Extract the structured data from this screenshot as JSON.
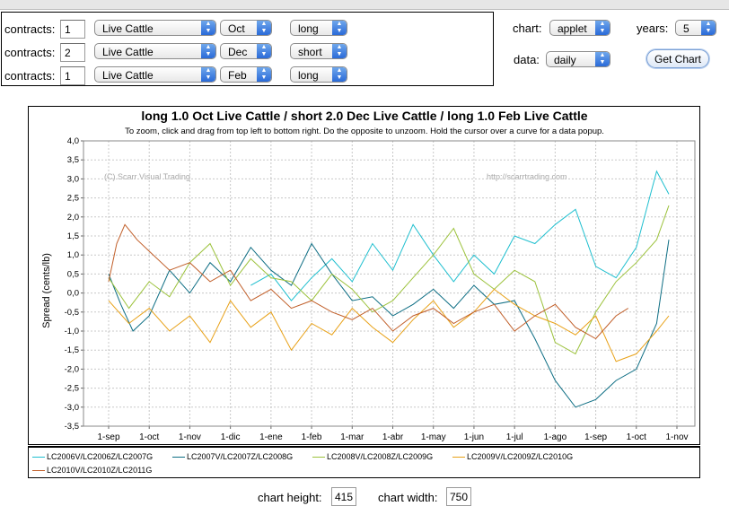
{
  "controls": {
    "rows": [
      {
        "label": "contracts:",
        "qty": "1",
        "commodity": "Live Cattle",
        "month": "Oct",
        "side": "long"
      },
      {
        "label": "contracts:",
        "qty": "2",
        "commodity": "Live Cattle",
        "month": "Dec",
        "side": "short"
      },
      {
        "label": "contracts:",
        "qty": "1",
        "commodity": "Live Cattle",
        "month": "Feb",
        "side": "long"
      }
    ],
    "chart_label": "chart:",
    "chart_value": "applet",
    "years_label": "years:",
    "years_value": "5",
    "data_label": "data:",
    "data_value": "daily",
    "button_label": "Get Chart",
    "arrow_up": "▲",
    "arrow_down": "▼"
  },
  "bottom": {
    "height_label": "chart height:",
    "height_value": "415",
    "width_label": "chart width:",
    "width_value": "750"
  },
  "colors": {
    "grid": "#c8c8c8",
    "series": [
      "#1fbfcf",
      "#0e6e84",
      "#9cc23c",
      "#e8a117",
      "#c15f2a"
    ]
  },
  "chart_data": {
    "type": "line",
    "title": "long 1.0 Oct Live Cattle / short 2.0 Dec Live Cattle / long 1.0 Feb Live Cattle",
    "subtitle": "To zoom, click and drag from top left to bottom right. Do the opposite to unzoom. Hold the cursor over a curve for a data popup.",
    "ylabel": "Spread (cents/lb)",
    "xlabel": "",
    "ylim": [
      -3.5,
      4.0
    ],
    "y_ticks": [
      "4,0",
      "3,5",
      "3,0",
      "2,5",
      "2,0",
      "1,5",
      "1,0",
      "0,5",
      "0,0",
      "-0,5",
      "-1,0",
      "-1,5",
      "-2,0",
      "-2,5",
      "-3,0",
      "-3,5"
    ],
    "x_ticks": [
      "1-sep",
      "1-oct",
      "1-nov",
      "1-dic",
      "1-ene",
      "1-feb",
      "1-mar",
      "1-abr",
      "1-may",
      "1-jun",
      "1-jul",
      "1-ago",
      "1-sep",
      "1-oct",
      "1-nov"
    ],
    "grid": true,
    "legend_position": "bottom",
    "watermarks": [
      "(C) Scarr Visual Trading",
      "http://scarrtrading.com"
    ],
    "series": [
      {
        "name": "LC2006V/LC2006Z/LC2007G",
        "x": [
          3.5,
          4,
          4.5,
          5,
          5.5,
          6,
          6.5,
          7,
          7.5,
          8,
          8.5,
          9,
          9.5,
          10,
          10.5,
          11,
          11.5,
          12,
          12.5,
          13,
          13.5,
          13.8
        ],
        "y": [
          0.2,
          0.5,
          -0.2,
          0.4,
          0.9,
          0.3,
          1.3,
          0.6,
          1.8,
          1.0,
          0.3,
          1.0,
          0.5,
          1.5,
          1.3,
          1.8,
          2.2,
          0.7,
          0.4,
          1.2,
          3.2,
          2.6
        ]
      },
      {
        "name": "LC2007V/LC2007Z/LC2008G",
        "x": [
          0,
          0.3,
          0.6,
          1,
          1.5,
          2,
          2.5,
          3,
          3.5,
          4,
          4.5,
          5,
          5.5,
          6,
          6.5,
          7,
          7.5,
          8,
          8.5,
          9,
          9.5,
          10,
          10.5,
          11,
          11.5,
          12,
          12.5,
          13,
          13.5,
          13.8
        ],
        "y": [
          0.5,
          -0.3,
          -1.0,
          -0.6,
          0.6,
          0.0,
          0.8,
          0.3,
          1.2,
          0.6,
          0.2,
          1.3,
          0.5,
          -0.2,
          -0.1,
          -0.6,
          -0.3,
          0.1,
          -0.4,
          0.2,
          -0.3,
          -0.2,
          -1.2,
          -2.3,
          -3.0,
          -2.8,
          -2.3,
          -2.0,
          -0.8,
          1.4
        ]
      },
      {
        "name": "LC2008V/LC2008Z/LC2009G",
        "x": [
          0,
          0.5,
          1,
          1.5,
          2,
          2.5,
          3,
          3.5,
          4,
          4.5,
          5,
          5.5,
          6,
          6.5,
          7,
          7.5,
          8,
          8.5,
          9,
          9.5,
          10,
          10.5,
          11,
          11.5,
          12,
          12.5,
          13,
          13.5,
          13.8
        ],
        "y": [
          0.4,
          -0.4,
          0.3,
          -0.1,
          0.8,
          1.3,
          0.2,
          0.9,
          0.4,
          0.3,
          -0.2,
          0.5,
          0.1,
          -0.5,
          -0.2,
          0.4,
          1.0,
          1.7,
          0.5,
          0.1,
          0.6,
          0.3,
          -1.3,
          -1.6,
          -0.5,
          0.3,
          0.8,
          1.4,
          2.3
        ]
      },
      {
        "name": "LC2009V/LC2009Z/LC2010G",
        "x": [
          0,
          0.5,
          1,
          1.5,
          2,
          2.5,
          3,
          3.5,
          4,
          4.5,
          5,
          5.5,
          6,
          6.5,
          7,
          7.5,
          8,
          8.5,
          9,
          9.5,
          10,
          10.5,
          11,
          11.5,
          12,
          12.5,
          13,
          13.5,
          13.8
        ],
        "y": [
          -0.2,
          -0.8,
          -0.4,
          -1.0,
          -0.6,
          -1.3,
          -0.2,
          -0.9,
          -0.5,
          -1.5,
          -0.8,
          -1.1,
          -0.4,
          -0.9,
          -1.3,
          -0.7,
          -0.2,
          -0.9,
          -0.5,
          0.1,
          -0.3,
          -0.6,
          -0.8,
          -1.1,
          -0.6,
          -1.8,
          -1.6,
          -1.0,
          -0.6
        ]
      },
      {
        "name": "LC2010V/LC2010Z/LC2011G",
        "x": [
          0,
          0.2,
          0.4,
          0.7,
          1,
          1.5,
          2,
          2.5,
          3,
          3.5,
          4,
          4.5,
          5,
          5.5,
          6,
          6.5,
          7,
          7.5,
          8,
          8.5,
          9,
          9.5,
          10,
          10.5,
          11,
          11.5,
          12,
          12.5,
          12.8
        ],
        "y": [
          0.3,
          1.3,
          1.8,
          1.4,
          1.1,
          0.6,
          0.8,
          0.3,
          0.6,
          -0.2,
          0.1,
          -0.4,
          -0.2,
          -0.5,
          -0.7,
          -0.4,
          -1.0,
          -0.6,
          -0.4,
          -0.8,
          -0.5,
          -0.3,
          -1.0,
          -0.6,
          -0.3,
          -0.9,
          -1.2,
          -0.6,
          -0.4
        ]
      }
    ]
  }
}
